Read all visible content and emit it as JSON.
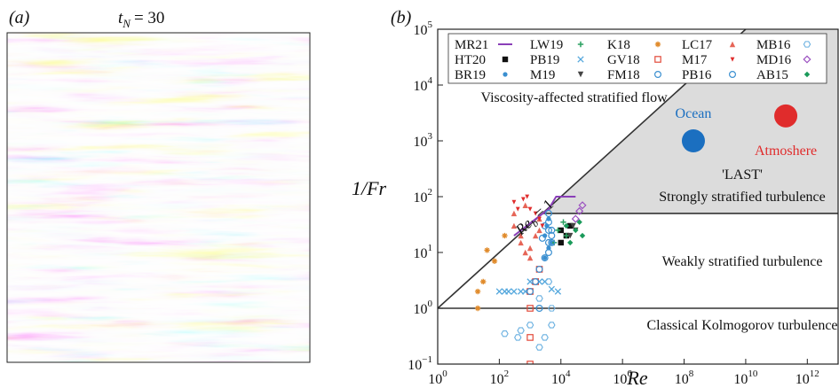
{
  "panel_a": {
    "label": "(a)",
    "title_var": "t",
    "title_sub": "N",
    "title_value": "= 30",
    "colors": {
      "positive": "#c8382f",
      "negative": "#1f5fa6",
      "neutral": "#f4f4f4"
    }
  },
  "chart_data": {
    "type": "scatter",
    "panel_label": "(b)",
    "xlabel": "Re",
    "ylabel": "1/Fr",
    "xscale": "log",
    "yscale": "log",
    "xlim": [
      1,
      10000000000000.0
    ],
    "ylim": [
      0.1,
      100000
    ],
    "x_ticks": [
      {
        "v": 1,
        "b": "10",
        "e": "0"
      },
      {
        "v": 100,
        "b": "10",
        "e": "2"
      },
      {
        "v": 10000,
        "b": "10",
        "e": "4"
      },
      {
        "v": 1000000,
        "b": "10",
        "e": "6"
      },
      {
        "v": 100000000,
        "b": "10",
        "e": "8"
      },
      {
        "v": 10000000000,
        "b": "10",
        "e": "10"
      },
      {
        "v": 1000000000000,
        "b": "10",
        "e": "12"
      }
    ],
    "y_ticks": [
      {
        "v": 0.1,
        "b": "10",
        "e": "−1"
      },
      {
        "v": 1,
        "b": "10",
        "e": "0"
      },
      {
        "v": 10,
        "b": "10",
        "e": "1"
      },
      {
        "v": 100,
        "b": "10",
        "e": "2"
      },
      {
        "v": 1000,
        "b": "10",
        "e": "3"
      },
      {
        "v": 10000,
        "b": "10",
        "e": "4"
      },
      {
        "v": 100000,
        "b": "10",
        "e": "5"
      }
    ],
    "reference_lines": {
      "reb_label_main": "Re",
      "reb_label_sub": "b",
      "reb_label_rest": " = 1",
      "fr_unity": 1,
      "strong_threshold": 50
    },
    "regions": [
      {
        "name": "Viscosity-affected stratified flow",
        "x": 25,
        "y": 6000
      },
      {
        "name": "'LAST'",
        "x": 5000000000.0,
        "y": 250
      },
      {
        "name": "Strongly stratified turbulence",
        "x": 8000000000.0,
        "y": 100
      },
      {
        "name": "Weakly stratified turbulence",
        "x": 8000000000.0,
        "y": 7
      },
      {
        "name": "Classical Kolmogorov turbulence",
        "x": 8000000000.0,
        "y": 0.5
      }
    ],
    "named_points": [
      {
        "name": "Ocean",
        "x": 200000000.0,
        "y": 1000,
        "color": "#1b6fc0",
        "label_y": 3200
      },
      {
        "name": "Atmoshere",
        "x": 200000000000.0,
        "y": 2800,
        "color": "#e02c2c",
        "label_y": 700
      }
    ],
    "legend": [
      {
        "name": "MR21",
        "marker": "line",
        "color": "#8a3fb8"
      },
      {
        "name": "HT20",
        "marker": "square",
        "color": "#111111"
      },
      {
        "name": "BR19",
        "marker": "dot",
        "color": "#3a8fd0"
      },
      {
        "name": "LW19",
        "marker": "plus",
        "color": "#2aa060"
      },
      {
        "name": "PB19",
        "marker": "x",
        "color": "#55a8dd"
      },
      {
        "name": "M19",
        "marker": "tri-down",
        "color": "#444444"
      },
      {
        "name": "K18",
        "marker": "asterisk",
        "color": "#e08a2a"
      },
      {
        "name": "GV18",
        "marker": "open-square",
        "color": "#e24a3a"
      },
      {
        "name": "FM18",
        "marker": "open-circle",
        "color": "#3a8fd0"
      },
      {
        "name": "LC17",
        "marker": "triangle",
        "color": "#e24a3a"
      },
      {
        "name": "M17",
        "marker": "small-tri-down",
        "color": "#e02c2c"
      },
      {
        "name": "PB16",
        "marker": "open-circle",
        "color": "#3a8fd0"
      },
      {
        "name": "MB16",
        "marker": "open-hex",
        "color": "#6ab0e0"
      },
      {
        "name": "MD16",
        "marker": "open-diamond",
        "color": "#9a4fc0"
      },
      {
        "name": "AB15",
        "marker": "diamond",
        "color": "#1a9a5a"
      }
    ],
    "series": [
      {
        "name": "MR21",
        "marker": "line",
        "color": "#8a3fb8",
        "points": [
          [
            300,
            20
          ],
          [
            4000,
            60
          ],
          [
            7000,
            100
          ],
          [
            30000,
            100
          ]
        ]
      },
      {
        "name": "HT20",
        "marker": "square",
        "color": "#111111",
        "points": [
          [
            10000,
            15
          ],
          [
            10000,
            25
          ],
          [
            20000,
            30
          ],
          [
            15000,
            20
          ]
        ]
      },
      {
        "name": "BR19",
        "marker": "dot",
        "color": "#3a8fd0",
        "points": [
          [
            3000,
            20
          ],
          [
            3500,
            30
          ],
          [
            4000,
            40
          ],
          [
            4000,
            12
          ],
          [
            5000,
            15
          ],
          [
            3000,
            8
          ]
        ]
      },
      {
        "name": "LW19",
        "marker": "plus",
        "color": "#2aa060",
        "points": [
          [
            6000,
            15
          ],
          [
            8000,
            25
          ],
          [
            12000,
            35
          ],
          [
            15000,
            20
          ]
        ]
      },
      {
        "name": "PB19",
        "marker": "x",
        "color": "#55a8dd",
        "points": [
          [
            100,
            2
          ],
          [
            150,
            2
          ],
          [
            200,
            2
          ],
          [
            300,
            2
          ],
          [
            500,
            2
          ],
          [
            700,
            2
          ],
          [
            1000,
            3
          ],
          [
            2000,
            3
          ],
          [
            3000,
            3
          ],
          [
            5000,
            2.2
          ],
          [
            8000,
            2
          ]
        ]
      },
      {
        "name": "M19",
        "marker": "tri-down",
        "color": "#444444",
        "points": [
          [
            20000,
            20
          ],
          [
            30000,
            25
          ],
          [
            25000,
            30
          ]
        ]
      },
      {
        "name": "K18",
        "marker": "asterisk",
        "color": "#e08a2a",
        "points": [
          [
            20,
            1
          ],
          [
            30,
            3
          ],
          [
            40,
            11
          ],
          [
            70,
            7
          ],
          [
            150,
            20
          ],
          [
            20,
            2
          ]
        ]
      },
      {
        "name": "GV18",
        "marker": "open-square",
        "color": "#e24a3a",
        "points": [
          [
            1000,
            0.1
          ],
          [
            1000,
            0.3
          ],
          [
            1000,
            1
          ],
          [
            1000,
            2
          ],
          [
            1500,
            3
          ],
          [
            2000,
            5
          ]
        ]
      },
      {
        "name": "FM18",
        "marker": "open-circle",
        "color": "#3a8fd0",
        "points": [
          [
            1000,
            2
          ],
          [
            1500,
            3
          ],
          [
            2000,
            5
          ],
          [
            3000,
            8
          ],
          [
            4000,
            10
          ],
          [
            5000,
            20
          ],
          [
            4000,
            50
          ],
          [
            3000,
            30
          ],
          [
            2500,
            18
          ],
          [
            2000,
            1
          ]
        ]
      },
      {
        "name": "LC17",
        "marker": "triangle",
        "color": "#e24a3a",
        "points": [
          [
            300,
            30
          ],
          [
            300,
            50
          ],
          [
            500,
            15
          ],
          [
            700,
            10
          ],
          [
            1000,
            8
          ],
          [
            1500,
            20
          ],
          [
            2000,
            40
          ],
          [
            700,
            70
          ],
          [
            500,
            20
          ],
          [
            1000,
            12
          ],
          [
            2000,
            25
          ]
        ]
      },
      {
        "name": "M17",
        "marker": "small-tri-down",
        "color": "#e02c2c",
        "points": [
          [
            300,
            80
          ],
          [
            600,
            90
          ],
          [
            800,
            100
          ],
          [
            1000,
            60
          ],
          [
            1500,
            50
          ],
          [
            2000,
            40
          ],
          [
            2500,
            30
          ],
          [
            400,
            60
          ]
        ]
      },
      {
        "name": "PB16",
        "marker": "open-circle",
        "color": "#3a8fd0",
        "points": [
          [
            4000,
            15
          ],
          [
            4000,
            25
          ],
          [
            4000,
            35
          ],
          [
            5000,
            15
          ],
          [
            5000,
            25
          ]
        ]
      },
      {
        "name": "MB16",
        "marker": "open-hex",
        "color": "#6ab0e0",
        "points": [
          [
            150,
            0.35
          ],
          [
            400,
            0.3
          ],
          [
            500,
            0.4
          ],
          [
            1000,
            0.5
          ],
          [
            2000,
            0.2
          ],
          [
            3000,
            0.3
          ],
          [
            5000,
            0.5
          ],
          [
            5000,
            1
          ],
          [
            4000,
            3
          ],
          [
            2000,
            1.5
          ]
        ]
      },
      {
        "name": "MD16",
        "marker": "open-diamond",
        "color": "#9a4fc0",
        "points": [
          [
            30000,
            40
          ],
          [
            50000,
            70
          ],
          [
            40000,
            55
          ]
        ]
      },
      {
        "name": "AB15",
        "marker": "diamond",
        "color": "#1a9a5a",
        "points": [
          [
            15000,
            30
          ],
          [
            20000,
            15
          ],
          [
            30000,
            25
          ],
          [
            50000,
            20
          ],
          [
            40000,
            35
          ]
        ]
      }
    ]
  }
}
